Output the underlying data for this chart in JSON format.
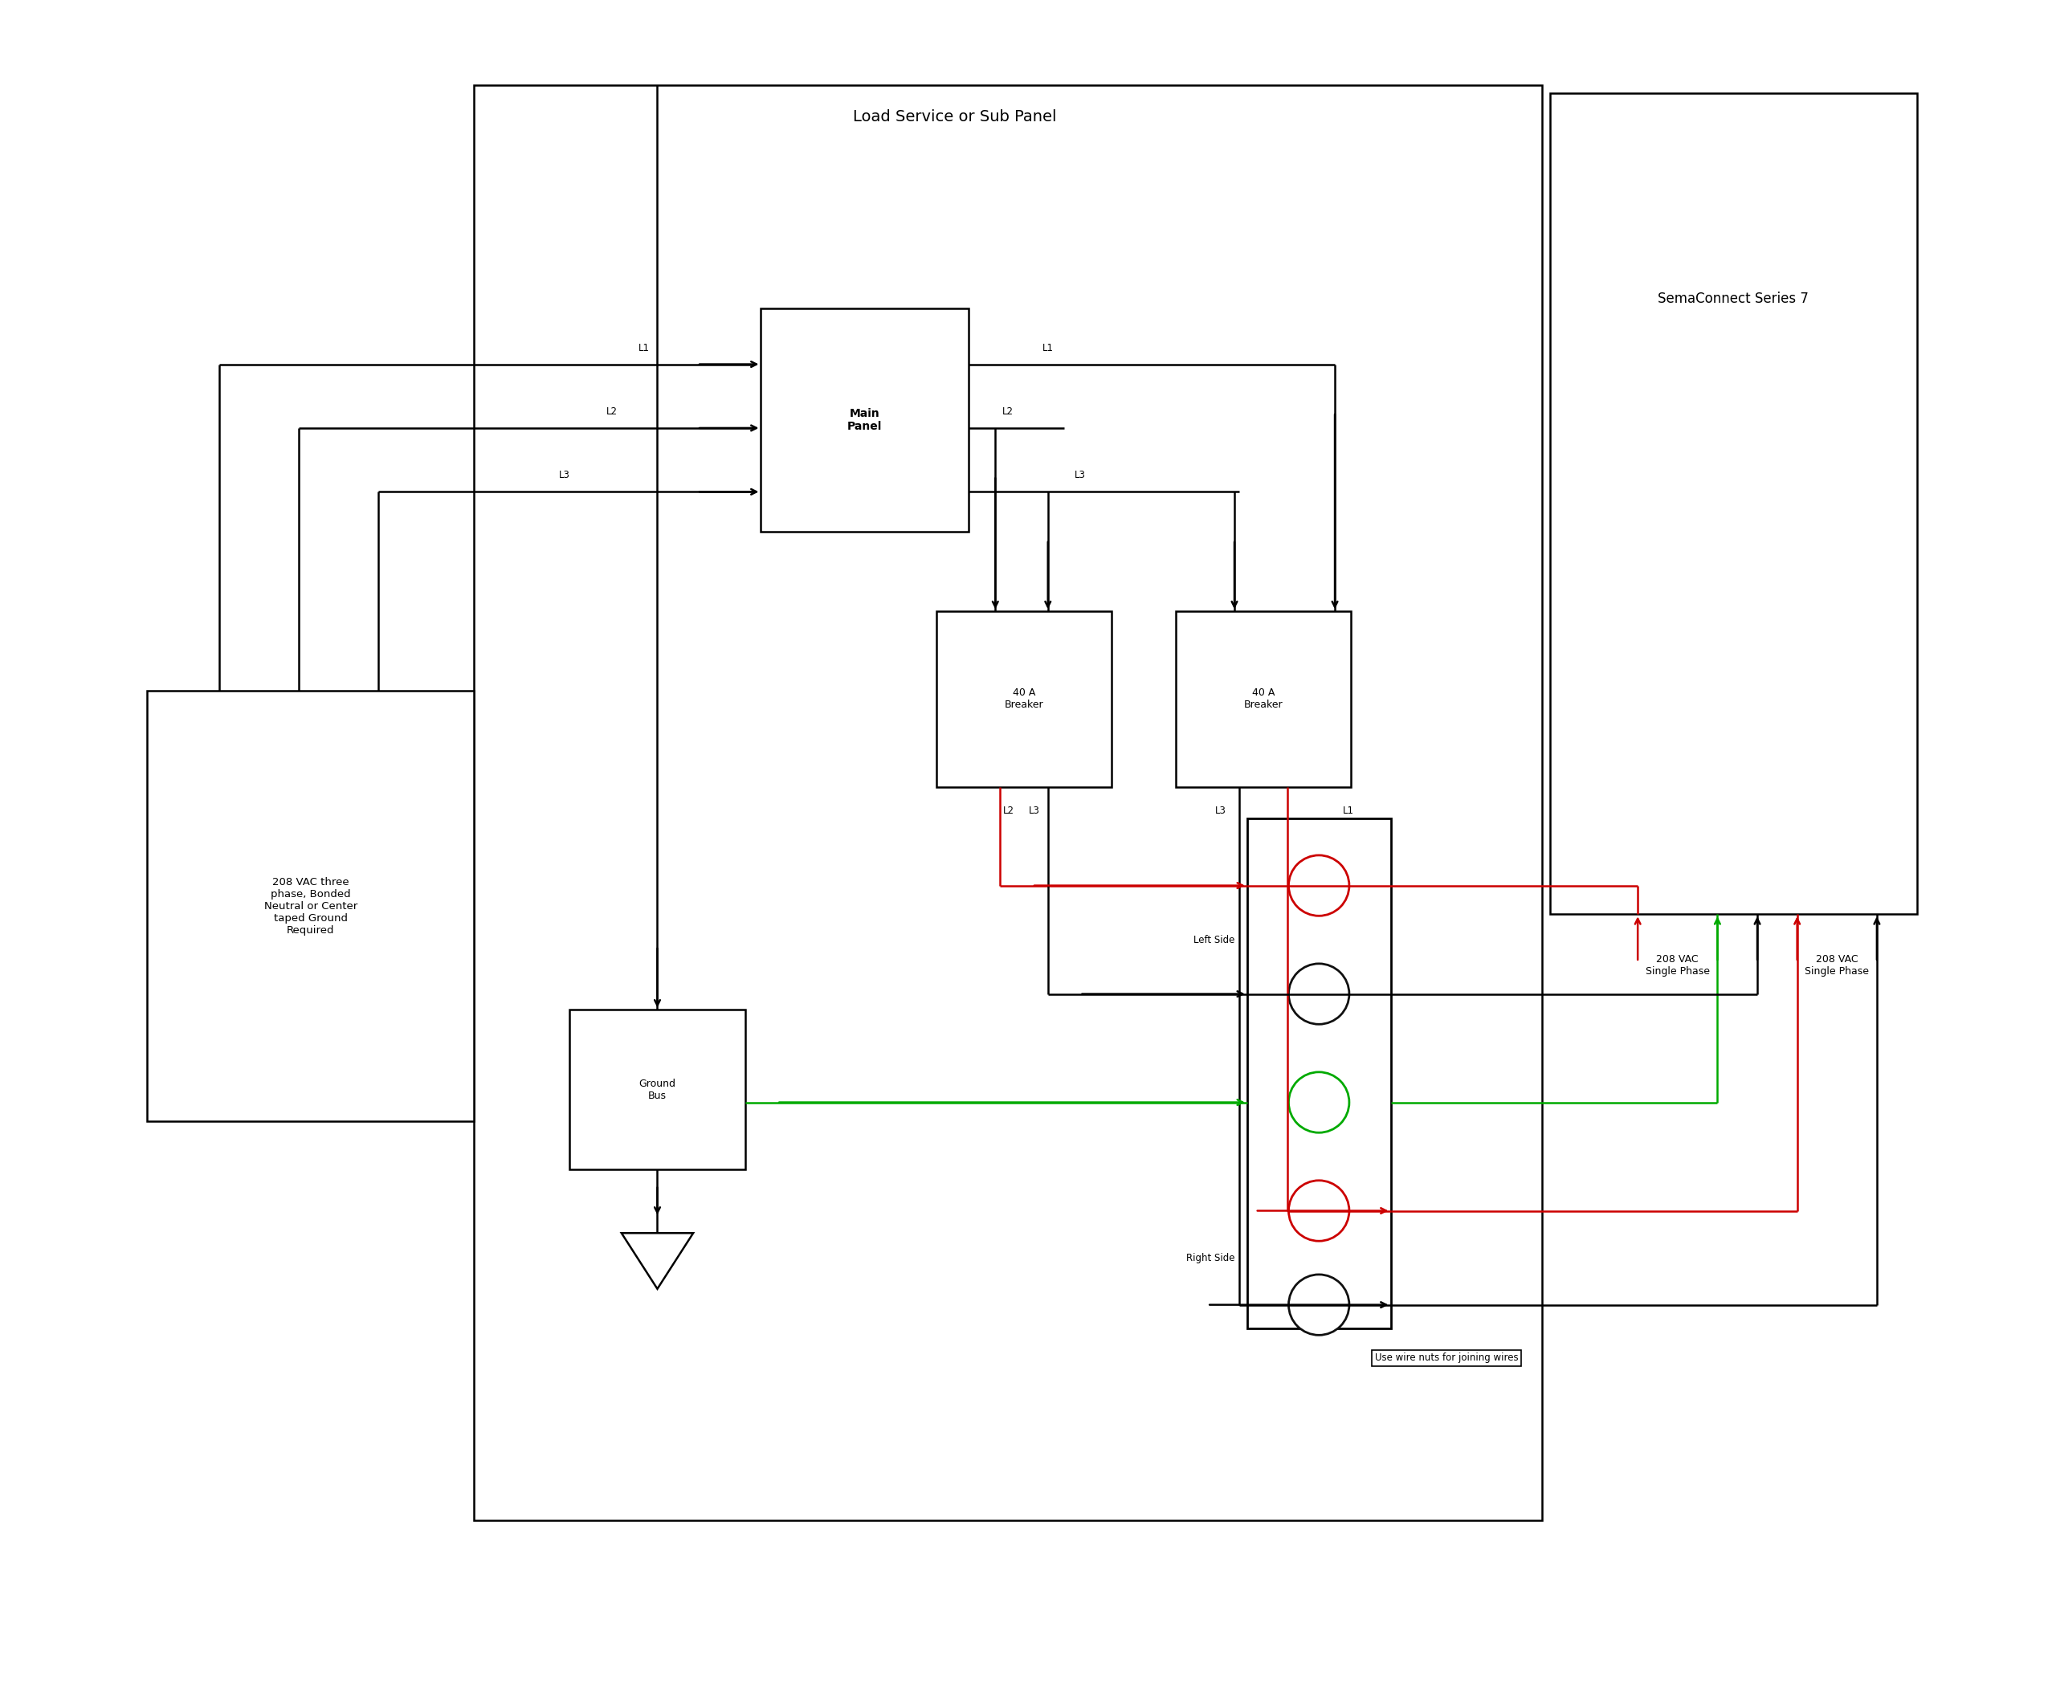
{
  "title": "Load Service or Sub Panel",
  "sema_title": "SemaConnect Series 7",
  "source_box_text": "208 VAC three\nphase, Bonded\nNeutral or Center\ntaped Ground\nRequired",
  "ground_bus_text": "Ground\nBus",
  "breaker1_text": "40 A\nBreaker",
  "breaker2_text": "40 A\nBreaker",
  "left_side_text": "Left Side",
  "right_side_text": "Right Side",
  "vac_left_text": "208 VAC\nSingle Phase",
  "vac_right_text": "208 VAC\nSingle Phase",
  "wire_nuts_text": "Use wire nuts for joining wires",
  "bg_color": "#ffffff",
  "line_color": "#000000",
  "red_color": "#cc0000",
  "green_color": "#00aa00"
}
